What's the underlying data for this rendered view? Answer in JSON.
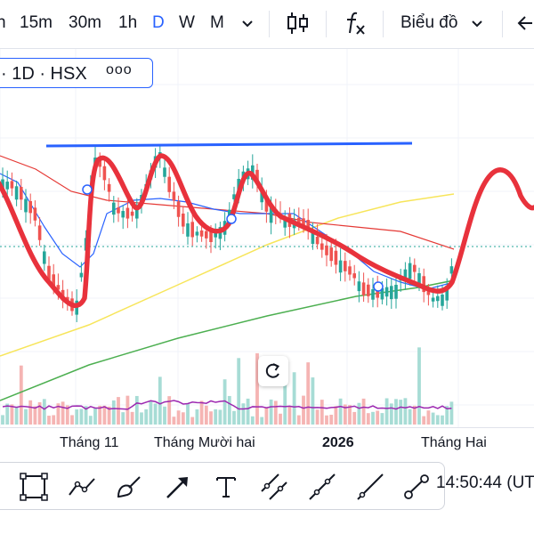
{
  "toolbar": {
    "intervals": [
      {
        "label": "h",
        "active": false
      },
      {
        "label": "15m",
        "active": false
      },
      {
        "label": "30m",
        "active": false
      },
      {
        "label": "1h",
        "active": false
      },
      {
        "label": "D",
        "active": true
      },
      {
        "label": "W",
        "active": false
      },
      {
        "label": "M",
        "active": false
      }
    ],
    "chart_type_label": "Biểu đồ",
    "accent_color": "#2962ff"
  },
  "legend": {
    "text": "· 1D · HSX",
    "more": "ooo"
  },
  "x_axis_labels": [
    {
      "text": "Tháng 11",
      "bold": false
    },
    {
      "text": "Tháng Mười hai",
      "bold": false
    },
    {
      "text": "2026",
      "bold": true
    },
    {
      "text": "Tháng Hai",
      "bold": false
    }
  ],
  "time_display": "14:50:44 (UTC",
  "drawing_tools": [
    "square-icon",
    "polyline-icon",
    "brush-icon",
    "arrow-icon",
    "text-icon",
    "parallel-channel-icon",
    "trend-line-icon",
    "ray-icon",
    "measure-icon"
  ],
  "colors": {
    "up_candle": "#26a69a",
    "down_candle": "#ef5350",
    "hand_drawn": "#e8323c",
    "ma_fast": "#2962ff",
    "ma_slow": "#e53935",
    "ma_yellow": "#f7e55a",
    "ma_green": "#4caf50",
    "resistance": "#2962ff",
    "volume_ma": "#9c27b0"
  }
}
